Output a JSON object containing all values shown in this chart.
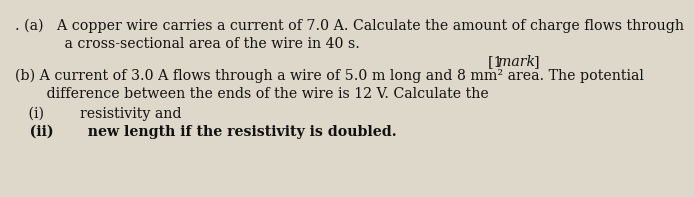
{
  "bg_color": "#ddd8ca",
  "text_color": "#111111",
  "font_size": 10.2,
  "small_font_size": 9.5,
  "line_a1": ". (a)   A copper wire carries a current of 7.0 A. Calculate the amount of charge flows through",
  "line_a2": "           a cross-sectional area of the wire in 40 s.",
  "line_mark_bracket1": "[1 ",
  "line_mark_italic": "mark",
  "line_mark_bracket2": "]",
  "line_b1": "(b) A current of 3.0 A flows through a wire of 5.0 m long and 8 mm² area. The potential",
  "line_b2": "       difference between the ends of the wire is 12 V. Calculate the",
  "line_i": "   (i)        resistivity and",
  "line_ii": "   (ii)       new length if the resistivity is doubled."
}
